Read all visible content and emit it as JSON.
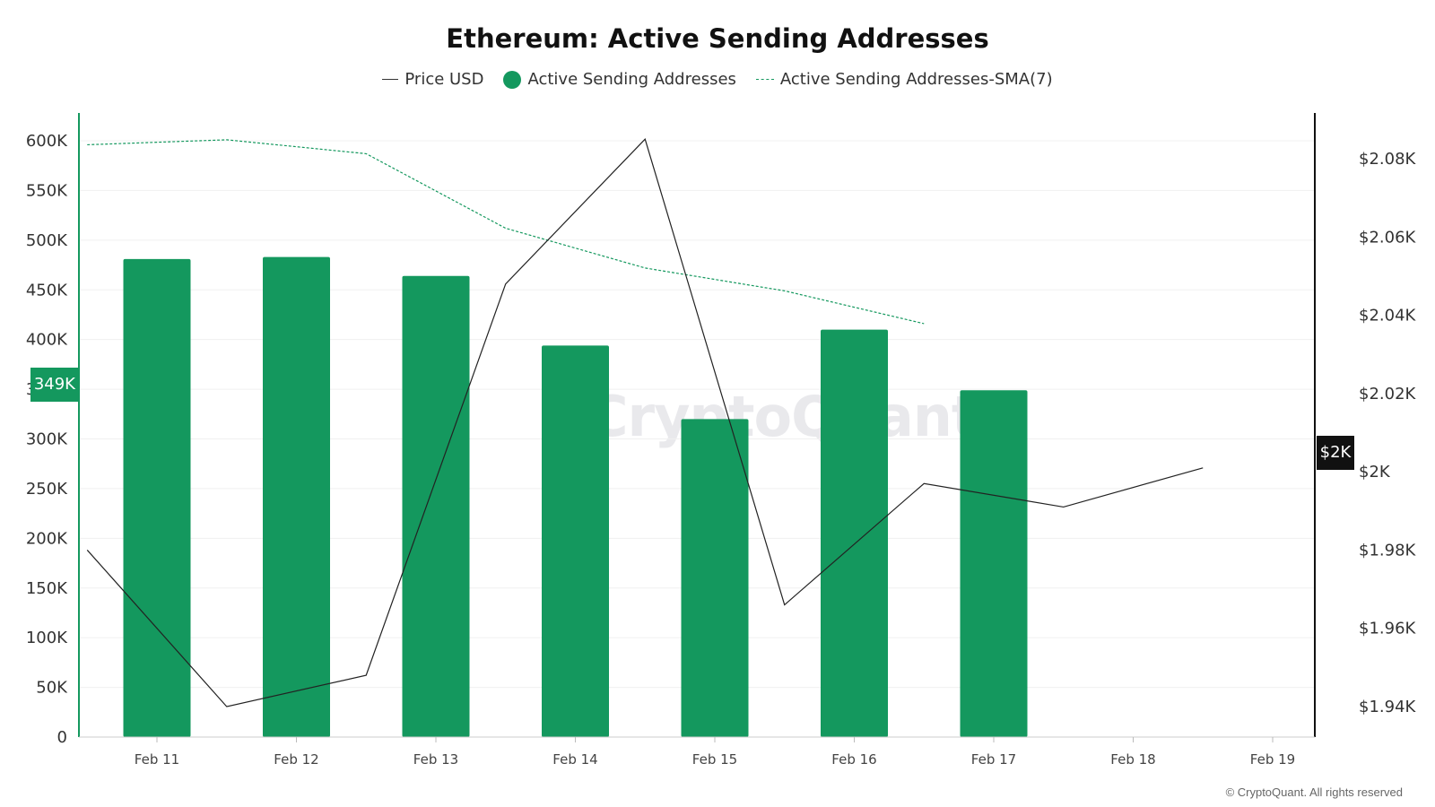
{
  "chart_data": {
    "type": "bar",
    "title": "Ethereum: Active Sending Addresses",
    "categories": [
      "Feb 11",
      "Feb 12",
      "Feb 13",
      "Feb 14",
      "Feb 15",
      "Feb 16",
      "Feb 17",
      "Feb 18",
      "Feb 19"
    ],
    "series": [
      {
        "name": "Active Sending Addresses",
        "kind": "bar",
        "axis": "left",
        "color": "#14985e",
        "values": [
          481000,
          483000,
          464000,
          394000,
          320000,
          410000,
          349000,
          null,
          null
        ]
      },
      {
        "name": "Active Sending Addresses-SMA(7)",
        "kind": "line-dashed",
        "axis": "left",
        "color": "#14985e",
        "values": [
          596000,
          601000,
          587000,
          512000,
          472000,
          449000,
          416000,
          null,
          null
        ]
      },
      {
        "name": "Price USD",
        "kind": "line",
        "axis": "right",
        "color": "#222222",
        "x": [
          "Feb 10",
          "Feb 11",
          "Feb 12",
          "Feb 13",
          "Feb 14",
          "Feb 15",
          "Feb 16",
          "Feb 17",
          "Feb 18"
        ],
        "values": [
          1980,
          1940,
          1948,
          2048,
          2085,
          1966,
          1997,
          1991,
          2001
        ]
      }
    ],
    "ylim_left": [
      0,
      600000
    ],
    "yticks_left": [
      "0",
      "50K",
      "100K",
      "150K",
      "200K",
      "250K",
      "300K",
      "350K",
      "400K",
      "450K",
      "500K",
      "550K",
      "600K"
    ],
    "ylim_right": [
      1940,
      2080
    ],
    "yticks_right": [
      "$1.94K",
      "$1.96K",
      "$1.98K",
      "$2K",
      "$2.02K",
      "$2.04K",
      "$2.06K",
      "$2.08K"
    ],
    "current_label_left": "349K",
    "current_label_right": "$2K",
    "grid": true,
    "legend_position": "top-center"
  },
  "legend": {
    "price": "Price USD",
    "active": "Active Sending Addresses",
    "sma": "Active Sending Addresses-SMA(7)"
  },
  "watermark": "CryptoQuant",
  "copyright": "© CryptoQuant. All rights reserved"
}
